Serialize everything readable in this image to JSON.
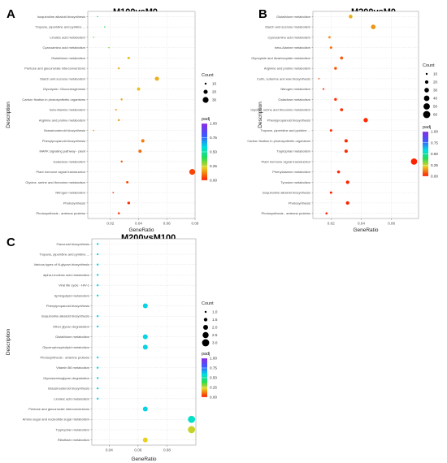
{
  "chart_data": [
    {
      "panel_letter": "A",
      "title": "M100vsM0",
      "type": "scatter",
      "xlabel": "GeneRatio",
      "ylabel": "Description",
      "xlim": [
        0.004,
        0.08
      ],
      "xticks": [
        0.02,
        0.04,
        0.06,
        0.08
      ],
      "xtick_labels": [
        "0.02",
        "0.04",
        "0.06",
        "0.08"
      ],
      "grid": true,
      "legend_position": "right",
      "size_legend": {
        "title": "Count",
        "values": [
          10,
          20,
          30
        ],
        "labels": [
          "10",
          "20",
          "30"
        ]
      },
      "color_legend": {
        "title": "padj",
        "ticks": [
          1.0,
          0.75,
          0.5,
          0.25,
          0.0
        ],
        "labels": [
          "1.00",
          "0.75",
          "0.50",
          "0.25",
          "0.00"
        ]
      },
      "points": [
        {
          "term": "Isoquinoline alkaloid biosynthesis",
          "x": 0.011,
          "count": 4,
          "padj": 0.45
        },
        {
          "term": "Tropane, piperidine and pyridine ...",
          "x": 0.016,
          "count": 6,
          "padj": 0.4
        },
        {
          "term": "Linoleic acid metabolism",
          "x": 0.008,
          "count": 3,
          "padj": 0.35
        },
        {
          "term": "Cyanoamino acid metabolism",
          "x": 0.019,
          "count": 7,
          "padj": 0.3
        },
        {
          "term": "Glutathione metabolism",
          "x": 0.033,
          "count": 12,
          "padj": 0.2
        },
        {
          "term": "Pentose and glucuronate interconversions",
          "x": 0.026,
          "count": 10,
          "padj": 0.18
        },
        {
          "term": "Starch and sucrose metabolism",
          "x": 0.053,
          "count": 20,
          "padj": 0.18
        },
        {
          "term": "Glycolysis / Gluconeogenesis",
          "x": 0.04,
          "count": 15,
          "padj": 0.2
        },
        {
          "term": "Carbon fixation in photosynthetic organisms",
          "x": 0.028,
          "count": 10,
          "padj": 0.17
        },
        {
          "term": "beta-Alanine metabolism",
          "x": 0.024,
          "count": 9,
          "padj": 0.15
        },
        {
          "term": "Arginine and proline metabolism",
          "x": 0.026,
          "count": 10,
          "padj": 0.15
        },
        {
          "term": "Brassinosteroid biosynthesis",
          "x": 0.008,
          "count": 3,
          "padj": 0.12
        },
        {
          "term": "Phenylpropanoid biosynthesis",
          "x": 0.043,
          "count": 16,
          "padj": 0.12
        },
        {
          "term": "MAPK signaling pathway - plant",
          "x": 0.041,
          "count": 15,
          "padj": 0.1
        },
        {
          "term": "Galactose metabolism",
          "x": 0.028,
          "count": 10,
          "padj": 0.07
        },
        {
          "term": "Plant hormone signal transduction",
          "x": 0.078,
          "count": 30,
          "padj": 0.05
        },
        {
          "term": "Glycine, serine and threonine metabolism",
          "x": 0.032,
          "count": 12,
          "padj": 0.06
        },
        {
          "term": "Nitrogen metabolism",
          "x": 0.022,
          "count": 8,
          "padj": 0.03
        },
        {
          "term": "Photosynthesis",
          "x": 0.033,
          "count": 13,
          "padj": 0.02
        },
        {
          "term": "Photosynthesis - antenna proteins",
          "x": 0.026,
          "count": 10,
          "padj": 0.01
        }
      ]
    },
    {
      "panel_letter": "B",
      "title": "M200vsM0",
      "type": "scatter",
      "xlabel": "GeneRatio",
      "ylabel": "Description",
      "xlim": [
        0.008,
        0.078
      ],
      "xticks": [
        0.02,
        0.04,
        0.06
      ],
      "xtick_labels": [
        "0.02",
        "0.04",
        "0.06"
      ],
      "grid": true,
      "legend_position": "right",
      "size_legend": {
        "title": "Count",
        "values": [
          10,
          20,
          30,
          40,
          50,
          60
        ],
        "labels": [
          "10",
          "20",
          "30",
          "40",
          "50",
          "60"
        ]
      },
      "color_legend": {
        "title": "padj",
        "ticks": [
          1.0,
          0.75,
          0.5,
          0.25,
          0.0
        ],
        "labels": [
          "1.00",
          "0.75",
          "0.50",
          "0.25",
          "0.00"
        ]
      },
      "points": [
        {
          "term": "Glutathione metabolism",
          "x": 0.033,
          "count": 22,
          "padj": 0.18
        },
        {
          "term": "Starch and sucrose metabolism",
          "x": 0.048,
          "count": 30,
          "padj": 0.15
        },
        {
          "term": "Cyanoamino acid metabolism",
          "x": 0.019,
          "count": 12,
          "padj": 0.14
        },
        {
          "term": "beta-Alanine metabolism",
          "x": 0.02,
          "count": 13,
          "padj": 0.1
        },
        {
          "term": "Glyoxylate and dicarboxylate metabolism",
          "x": 0.027,
          "count": 17,
          "padj": 0.08
        },
        {
          "term": "Arginine and proline metabolism",
          "x": 0.023,
          "count": 15,
          "padj": 0.07
        },
        {
          "term": "Cutin, suberine and wax biosynthesis",
          "x": 0.012,
          "count": 7,
          "padj": 0.05
        },
        {
          "term": "Nitrogen metabolism",
          "x": 0.015,
          "count": 9,
          "padj": 0.04
        },
        {
          "term": "Galactose metabolism",
          "x": 0.023,
          "count": 15,
          "padj": 0.03
        },
        {
          "term": "Glycine, serine and threonine metabolism",
          "x": 0.027,
          "count": 17,
          "padj": 0.03
        },
        {
          "term": "Phenylpropanoid biosynthesis",
          "x": 0.043,
          "count": 28,
          "padj": 0.02
        },
        {
          "term": "Tropane, piperidine and pyridine ...",
          "x": 0.02,
          "count": 13,
          "padj": 0.02
        },
        {
          "term": "Carbon fixation in photosynthetic organisms",
          "x": 0.03,
          "count": 19,
          "padj": 0.02
        },
        {
          "term": "Tryptophan metabolism",
          "x": 0.03,
          "count": 19,
          "padj": 0.02
        },
        {
          "term": "Plant hormone signal transduction",
          "x": 0.075,
          "count": 48,
          "padj": 0.01
        },
        {
          "term": "Phenylalanine metabolism",
          "x": 0.025,
          "count": 16,
          "padj": 0.01
        },
        {
          "term": "Tyrosine metabolism",
          "x": 0.031,
          "count": 20,
          "padj": 0.01
        },
        {
          "term": "Isoquinoline alkaloid biosynthesis",
          "x": 0.02,
          "count": 13,
          "padj": 0.01
        },
        {
          "term": "Photosynthesis",
          "x": 0.031,
          "count": 20,
          "padj": 0.01
        },
        {
          "term": "Photosynthesis - antenna proteins",
          "x": 0.017,
          "count": 11,
          "padj": 0.01
        }
      ]
    },
    {
      "panel_letter": "C",
      "title": "M200vsM100",
      "type": "scatter",
      "xlabel": "GeneRatio",
      "ylabel": "Description",
      "xlim": [
        0.028,
        0.1
      ],
      "xticks": [
        0.04,
        0.06,
        0.08
      ],
      "xtick_labels": [
        "0.04",
        "0.06",
        "0.08"
      ],
      "grid": true,
      "legend_position": "right",
      "size_legend": {
        "title": "Count",
        "values": [
          1.0,
          1.5,
          2.0,
          2.5,
          3.0
        ],
        "labels": [
          "1.0",
          "1.5",
          "2.0",
          "2.5",
          "3.0"
        ]
      },
      "color_legend": {
        "title": "padj",
        "ticks": [
          1.0,
          0.75,
          0.5,
          0.25,
          0.0
        ],
        "labels": [
          "1.00",
          "0.75",
          "0.50",
          "0.25",
          "0.00"
        ]
      },
      "points": [
        {
          "term": "Flavonoid biosynthesis",
          "x": 0.032,
          "count": 1,
          "padj": 0.6
        },
        {
          "term": "Tropane, piperidine and pyridine ...",
          "x": 0.032,
          "count": 1,
          "padj": 0.6
        },
        {
          "term": "Various types of N-glycan biosynthesis",
          "x": 0.032,
          "count": 1,
          "padj": 0.6
        },
        {
          "term": "alpha-Linolenic acid metabolism",
          "x": 0.032,
          "count": 1,
          "padj": 0.6
        },
        {
          "term": "Viral life cycle - HIV-1",
          "x": 0.032,
          "count": 1,
          "padj": 0.6
        },
        {
          "term": "Sphingolipid metabolism",
          "x": 0.032,
          "count": 1,
          "padj": 0.6
        },
        {
          "term": "Phenylpropanoid biosynthesis",
          "x": 0.065,
          "count": 2,
          "padj": 0.6
        },
        {
          "term": "Isoquinoline alkaloid biosynthesis",
          "x": 0.032,
          "count": 1,
          "padj": 0.6
        },
        {
          "term": "Other glycan degradation",
          "x": 0.032,
          "count": 1,
          "padj": 0.6
        },
        {
          "term": "Glutathione metabolism",
          "x": 0.065,
          "count": 2,
          "padj": 0.6
        },
        {
          "term": "Glycerophospholipid metabolism",
          "x": 0.065,
          "count": 2,
          "padj": 0.6
        },
        {
          "term": "Photosynthesis - antenna proteins",
          "x": 0.032,
          "count": 1,
          "padj": 0.6
        },
        {
          "term": "Vitamin B6 metabolism",
          "x": 0.032,
          "count": 1,
          "padj": 0.6
        },
        {
          "term": "Glycosaminoglycan degradation",
          "x": 0.032,
          "count": 1,
          "padj": 0.6
        },
        {
          "term": "Brassinosteroid biosynthesis",
          "x": 0.032,
          "count": 1,
          "padj": 0.6
        },
        {
          "term": "Linoleic acid metabolism",
          "x": 0.032,
          "count": 1,
          "padj": 0.6
        },
        {
          "term": "Pentose and glucuronate interconversions",
          "x": 0.065,
          "count": 2,
          "padj": 0.6
        },
        {
          "term": "Amino sugar and nucleotide sugar metabolism",
          "x": 0.097,
          "count": 3,
          "padj": 0.55
        },
        {
          "term": "Tryptophan metabolism",
          "x": 0.097,
          "count": 3,
          "padj": 0.25
        },
        {
          "term": "Riboflavin metabolism",
          "x": 0.065,
          "count": 2,
          "padj": 0.22
        }
      ]
    }
  ]
}
